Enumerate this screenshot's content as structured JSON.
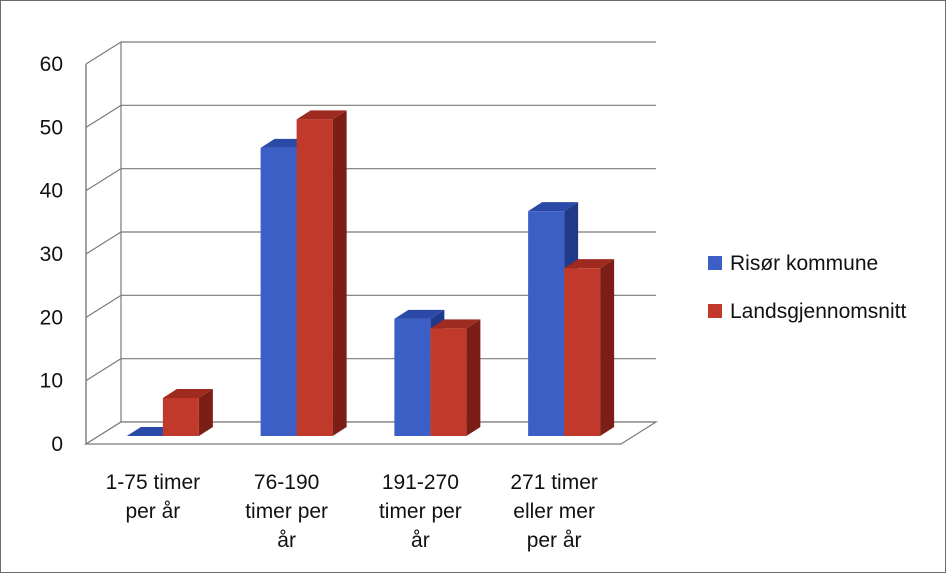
{
  "chart_data": {
    "type": "bar",
    "categories": [
      [
        "1-75 timer",
        "per år"
      ],
      [
        "76-190",
        "timer per",
        "år"
      ],
      [
        "191-270",
        "timer per",
        "år"
      ],
      [
        "271 timer",
        "eller mer",
        "per år"
      ]
    ],
    "series": [
      {
        "name": "Risør kommune",
        "values": [
          0,
          45.5,
          18.5,
          35.5
        ],
        "color": "#3b5fc4",
        "side": "#1f3a8a",
        "top": "#2b4aa8"
      },
      {
        "name": "Landsgjennomsnitt",
        "values": [
          6,
          50,
          17,
          26.5
        ],
        "color": "#c0392b",
        "side": "#7a1e16",
        "top": "#9e2a20"
      }
    ],
    "ylim": [
      0,
      60
    ],
    "yticks": [
      "0",
      "10",
      "20",
      "30",
      "40",
      "50",
      "60"
    ],
    "grid": true,
    "legend_position": "right"
  }
}
